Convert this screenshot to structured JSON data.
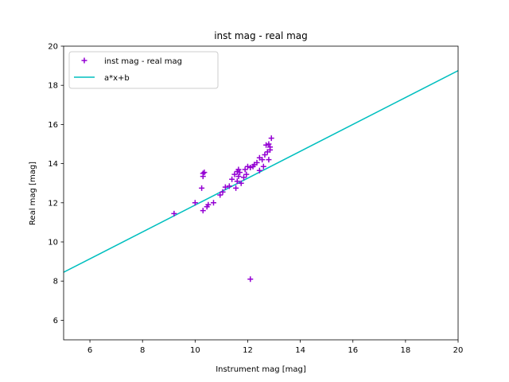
{
  "chart_data": {
    "type": "scatter",
    "title": "inst mag - real mag",
    "xlabel": "Instrument mag [mag]",
    "ylabel": "Real mag [mag]",
    "xlim": [
      5,
      20
    ],
    "ylim": [
      5,
      20
    ],
    "xticks": [
      6,
      8,
      10,
      12,
      14,
      16,
      18,
      20
    ],
    "yticks": [
      6,
      8,
      10,
      12,
      14,
      16,
      18,
      20
    ],
    "grid": false,
    "legend_position": "top-left",
    "colors": {
      "scatter": "#9400d3",
      "line": "#00bfbf"
    },
    "series": [
      {
        "name": "inst mag - real mag",
        "kind": "scatter",
        "marker": "+",
        "x": [
          9.2,
          10.0,
          10.25,
          10.3,
          10.3,
          10.3,
          10.35,
          10.45,
          10.5,
          10.7,
          10.95,
          11.05,
          11.15,
          11.3,
          11.4,
          11.5,
          11.55,
          11.6,
          11.6,
          11.65,
          11.65,
          11.7,
          11.75,
          11.85,
          11.9,
          11.95,
          12.0,
          12.1,
          12.2,
          12.25,
          12.35,
          12.45,
          12.45,
          12.55,
          12.6,
          12.65,
          12.7,
          12.75,
          12.8,
          12.8,
          12.85,
          12.85,
          12.9,
          12.1
        ],
        "y": [
          11.45,
          12.0,
          12.75,
          11.6,
          13.35,
          13.5,
          13.55,
          11.8,
          11.9,
          12.0,
          12.4,
          12.55,
          12.8,
          12.85,
          13.2,
          13.45,
          12.75,
          13.1,
          13.6,
          13.35,
          13.7,
          13.55,
          13.0,
          13.3,
          13.7,
          13.45,
          13.85,
          13.8,
          13.85,
          13.95,
          14.05,
          14.3,
          13.65,
          14.2,
          13.85,
          14.45,
          14.95,
          14.6,
          14.2,
          15.0,
          14.7,
          14.85,
          15.3,
          8.1
        ]
      },
      {
        "name": "a*x+b",
        "kind": "line",
        "x": [
          5,
          20
        ],
        "y": [
          8.45,
          18.75
        ]
      }
    ]
  }
}
